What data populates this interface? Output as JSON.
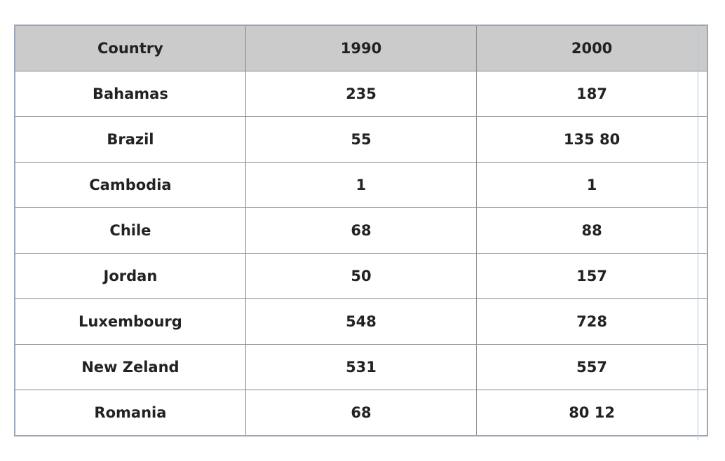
{
  "table": {
    "header": [
      "Country",
      "1990",
      "2000"
    ],
    "rows": [
      [
        "Bahamas",
        235,
        187
      ],
      [
        "Brazil",
        55,
        "135 80"
      ],
      [
        "Cambodia",
        1,
        1
      ],
      [
        "Chile",
        68,
        88
      ],
      [
        "Jordan",
        50,
        157
      ],
      [
        "Luxembourg",
        548,
        728
      ],
      [
        "New Zeland",
        531,
        557
      ],
      [
        "Romania",
        68,
        "80 12"
      ]
    ]
  }
}
